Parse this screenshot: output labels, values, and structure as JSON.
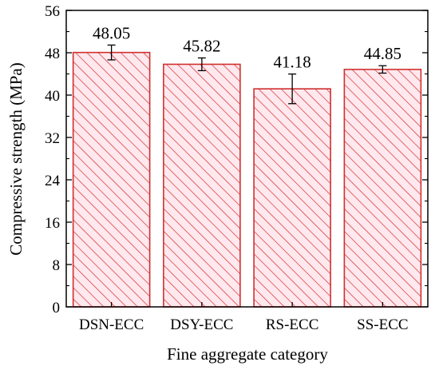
{
  "chart_data": {
    "type": "bar",
    "categories": [
      "DSN-ECC",
      "DSY-ECC",
      "RS-ECC",
      "SS-ECC"
    ],
    "values": [
      48.05,
      45.82,
      41.18,
      44.85
    ],
    "value_labels": [
      "48.05",
      "45.82",
      "41.18",
      "44.85"
    ],
    "error_bars": [
      1.4,
      1.2,
      2.8,
      0.7
    ],
    "xlabel": "Fine aggregate category",
    "ylabel": "Compressive strength (MPa)",
    "ylim": [
      0,
      56
    ],
    "yticks": [
      0,
      8,
      16,
      24,
      32,
      40,
      48,
      56
    ],
    "grid": false,
    "legend": "none",
    "bar_fill": "hatched",
    "colors": {
      "bar_edge": "#d0302f",
      "hatch": "#d0302f",
      "bar_background": "#ffe8ee",
      "error_bar": "#000000",
      "axis": "#000000"
    }
  }
}
